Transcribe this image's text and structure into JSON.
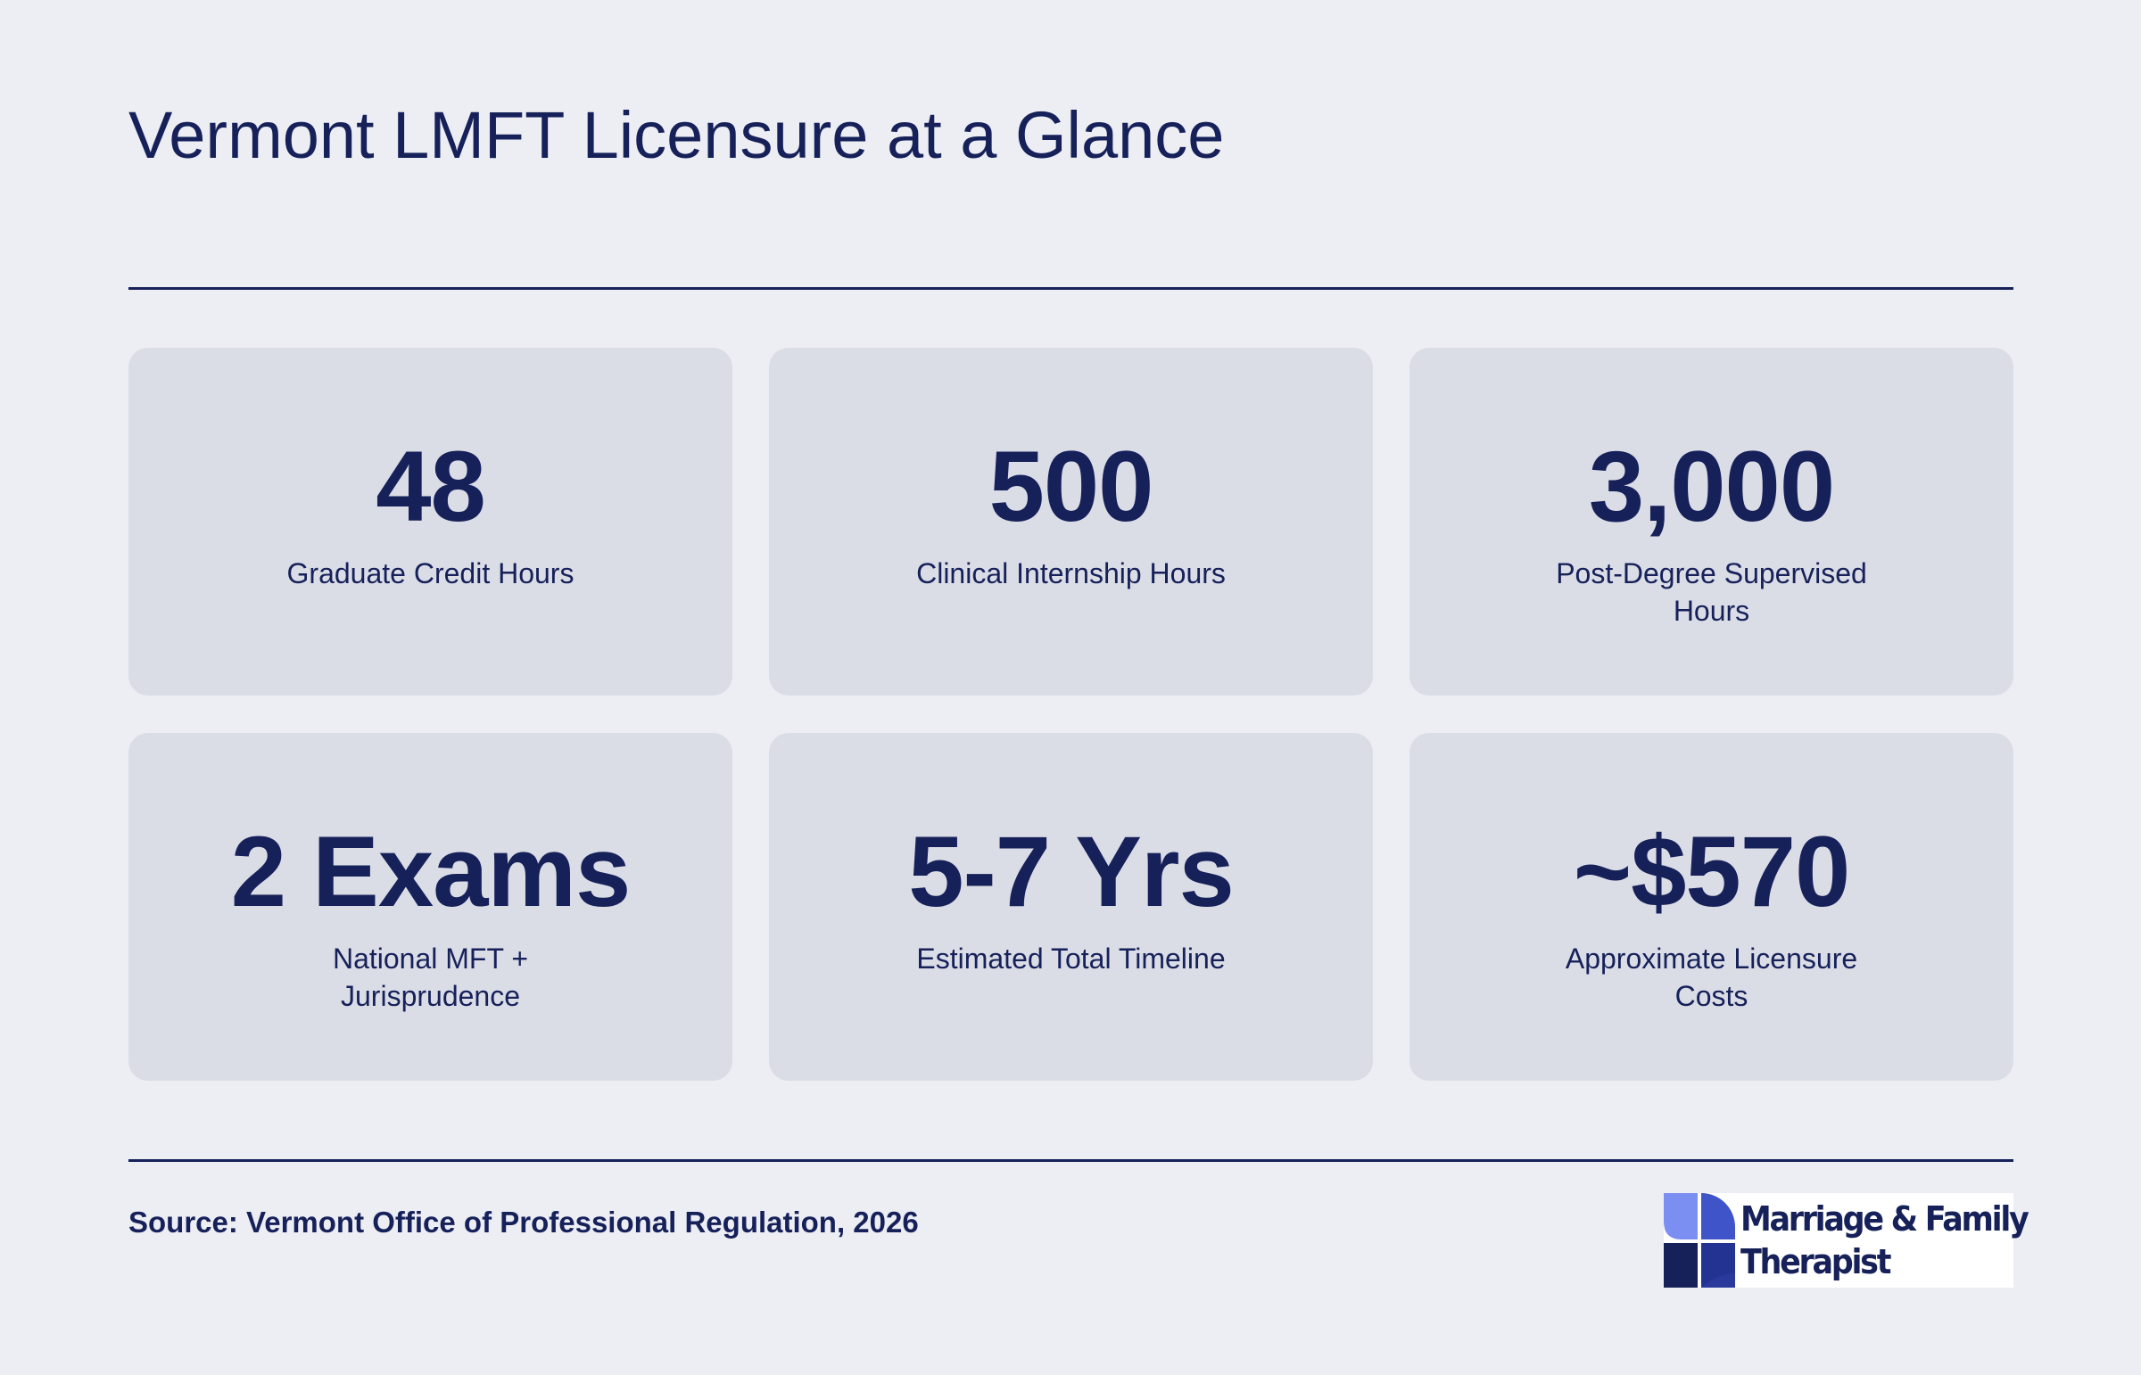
{
  "page": {
    "title": "Vermont LMFT Licensure at a Glance"
  },
  "stats": [
    {
      "value": "48",
      "label": "Graduate Credit Hours"
    },
    {
      "value": "500",
      "label": "Clinical Internship Hours"
    },
    {
      "value": "3,000",
      "label": "Post-Degree Supervised Hours"
    },
    {
      "value": "2 Exams",
      "label": "National MFT + Jurisprudence"
    },
    {
      "value": "5-7 Yrs",
      "label": "Estimated Total Timeline"
    },
    {
      "value": "~$570",
      "label": "Approximate Licensure Costs"
    }
  ],
  "footer": {
    "source": "Source: Vermont Office of Professional Regulation, 2026"
  },
  "logo": {
    "line1": "Marriage & Family",
    "line2": "Therapist",
    "icon": "pinwheel-logo-icon"
  },
  "colors": {
    "background": "#edeef4",
    "card": "#dbdde6",
    "text": "#16215a",
    "logo_light": "#7b8ff2",
    "logo_mid": "#3e54c8",
    "logo_dark": "#16215a"
  }
}
